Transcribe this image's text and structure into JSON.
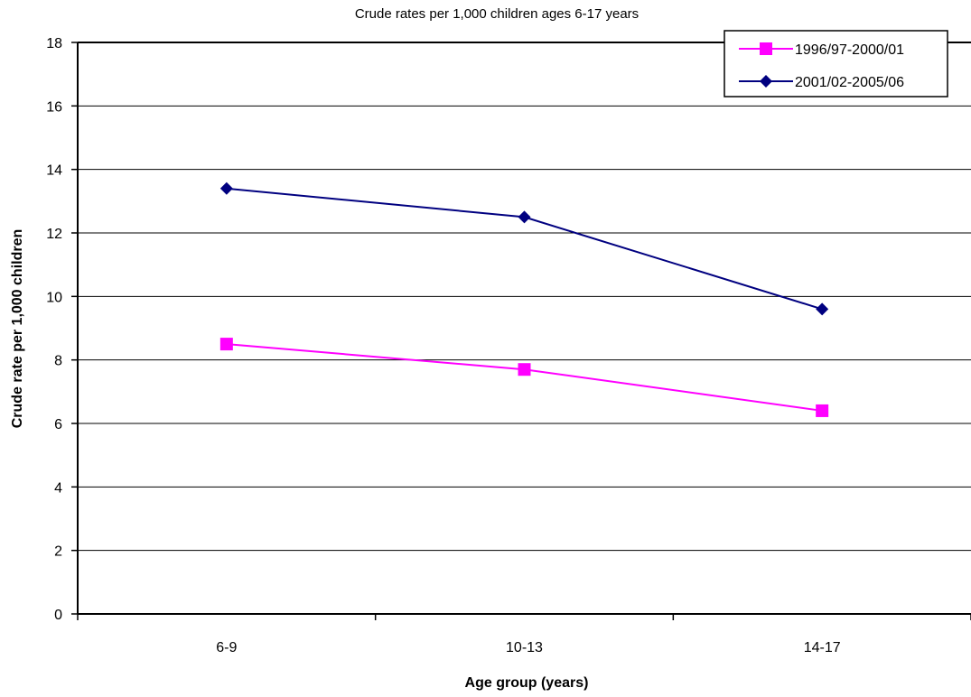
{
  "chart_data": {
    "type": "line",
    "title": "Crude rates per 1,000 children ages 6-17 years",
    "xlabel": "Age group (years)",
    "ylabel": "Crude rate per 1,000 children",
    "categories": [
      "6-9",
      "10-13",
      "14-17"
    ],
    "ylim": [
      0,
      18
    ],
    "yticks": [
      0,
      2,
      4,
      6,
      8,
      10,
      12,
      14,
      16,
      18
    ],
    "grid": "horizontal",
    "legend_position": "top-right",
    "series": [
      {
        "name": "1996/97-2000/01",
        "values": [
          8.5,
          7.7,
          6.4
        ],
        "color": "#ff00ff",
        "marker": "square"
      },
      {
        "name": "2001/02-2005/06",
        "values": [
          13.4,
          12.5,
          9.6
        ],
        "color": "#000080",
        "marker": "diamond"
      }
    ]
  }
}
